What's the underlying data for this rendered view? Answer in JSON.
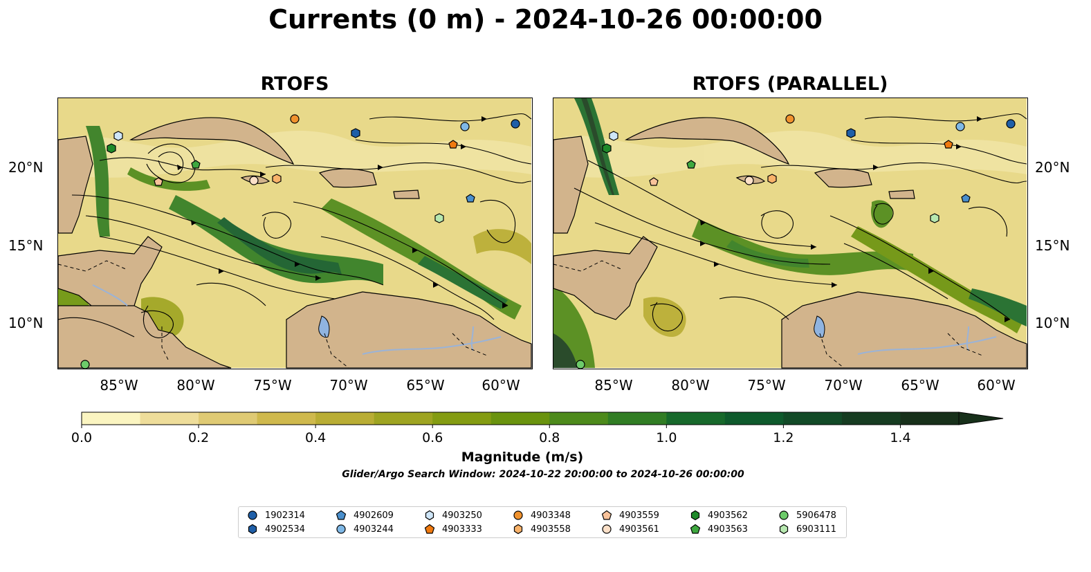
{
  "title": "Currents (0 m) - 2024-10-26 00:00:00",
  "panels": [
    {
      "title": "RTOFS"
    },
    {
      "title": "RTOFS (PARALLEL)"
    }
  ],
  "axes": {
    "lon_ticks": [
      "85°W",
      "80°W",
      "75°W",
      "70°W",
      "65°W",
      "60°W"
    ],
    "lat_ticks": [
      "20°N",
      "15°N",
      "10°N"
    ]
  },
  "colorbar": {
    "label": "Magnitude (m/s)",
    "tick_labels": [
      "0.0",
      "0.2",
      "0.4",
      "0.6",
      "0.8",
      "1.0",
      "1.2",
      "1.4"
    ],
    "min": 0.0,
    "max": 1.5,
    "colors": [
      "#fbf5c1",
      "#eedd9a",
      "#dfca74",
      "#cfb94d",
      "#b9ad34",
      "#9ea421",
      "#849c12",
      "#6a930e",
      "#4d8a1b",
      "#317d24",
      "#17692b",
      "#0e5a2c",
      "#124a27",
      "#163c21",
      "#17301a"
    ],
    "extend": "max"
  },
  "search_window": "Glider/Argo Search Window: 2024-10-22 20:00:00 to 2024-10-26 00:00:00",
  "legend": [
    {
      "id": "1902314",
      "marker": "circle",
      "color": "#1f5fa8"
    },
    {
      "id": "4902534",
      "marker": "hexagon",
      "color": "#1f5fa8"
    },
    {
      "id": "4902609",
      "marker": "pentagon",
      "color": "#4a8fcc"
    },
    {
      "id": "4903244",
      "marker": "circle",
      "color": "#7fb8e6"
    },
    {
      "id": "4903250",
      "marker": "hexagon",
      "color": "#cfe6f8"
    },
    {
      "id": "4903333",
      "marker": "pentagon",
      "color": "#f07a10"
    },
    {
      "id": "4903348",
      "marker": "circle",
      "color": "#f0922e"
    },
    {
      "id": "4903558",
      "marker": "hexagon",
      "color": "#f8b26a"
    },
    {
      "id": "4903559",
      "marker": "pentagon",
      "color": "#f8c29a"
    },
    {
      "id": "4903561",
      "marker": "circle",
      "color": "#fce0c8"
    },
    {
      "id": "4903562",
      "marker": "hexagon",
      "color": "#1f8a2a"
    },
    {
      "id": "4903563",
      "marker": "pentagon",
      "color": "#3ea83f"
    },
    {
      "id": "5906478",
      "marker": "circle",
      "color": "#6dcb6a"
    },
    {
      "id": "6903111",
      "marker": "hexagon",
      "color": "#b7e8b0"
    }
  ]
}
